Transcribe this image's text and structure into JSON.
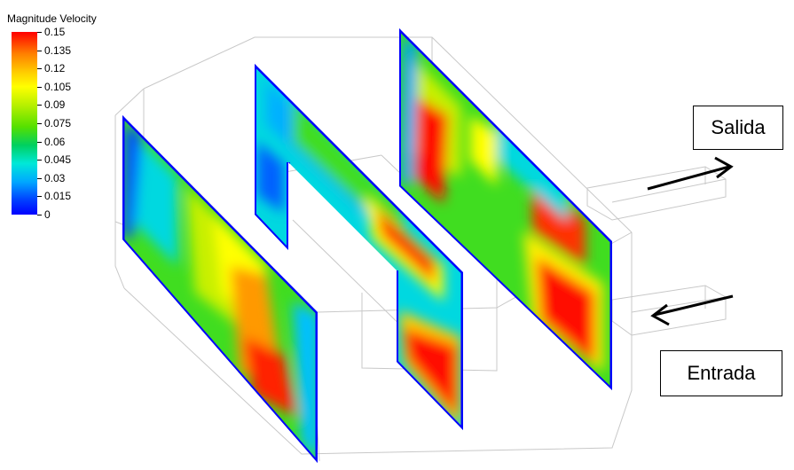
{
  "legend": {
    "title": "Magnitude Velocity",
    "ticks": [
      "0.15",
      "0.135",
      "0.12",
      "0.105",
      "0.09",
      "0.075",
      "0.06",
      "0.045",
      "0.03",
      "0.015",
      "0"
    ]
  },
  "labels": {
    "outlet": "Salida",
    "inlet": "Entrada"
  },
  "colors": {
    "max": "#ff0000",
    "high": "#ff8000",
    "mid_high": "#ffff00",
    "mid": "#40dd20",
    "mid_low": "#00e0d0",
    "low": "#0000ff"
  }
}
